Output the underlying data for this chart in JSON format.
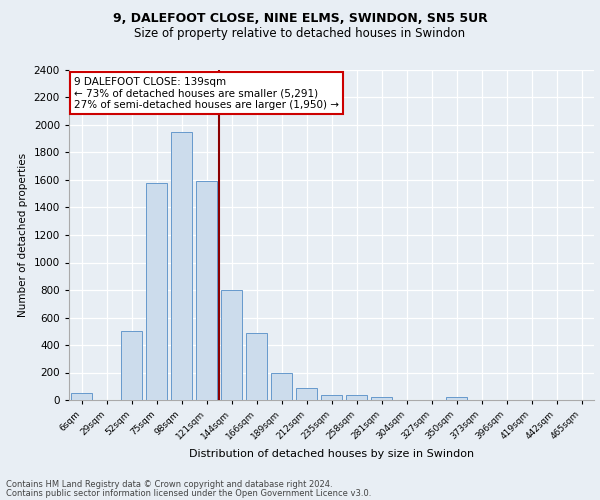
{
  "title_line1": "9, DALEFOOT CLOSE, NINE ELMS, SWINDON, SN5 5UR",
  "title_line2": "Size of property relative to detached houses in Swindon",
  "xlabel": "Distribution of detached houses by size in Swindon",
  "ylabel": "Number of detached properties",
  "categories": [
    "6sqm",
    "29sqm",
    "52sqm",
    "75sqm",
    "98sqm",
    "121sqm",
    "144sqm",
    "166sqm",
    "189sqm",
    "212sqm",
    "235sqm",
    "258sqm",
    "281sqm",
    "304sqm",
    "327sqm",
    "350sqm",
    "373sqm",
    "396sqm",
    "419sqm",
    "442sqm",
    "465sqm"
  ],
  "values": [
    50,
    0,
    500,
    1580,
    1950,
    1590,
    800,
    490,
    195,
    90,
    35,
    35,
    25,
    0,
    0,
    20,
    0,
    0,
    0,
    0,
    0
  ],
  "bar_color": "#ccdcec",
  "bar_edge_color": "#6699cc",
  "vline_x": 5.5,
  "vline_color": "#8b0000",
  "ylim": [
    0,
    2400
  ],
  "yticks": [
    0,
    200,
    400,
    600,
    800,
    1000,
    1200,
    1400,
    1600,
    1800,
    2000,
    2200,
    2400
  ],
  "annotation_text": "9 DALEFOOT CLOSE: 139sqm\n← 73% of detached houses are smaller (5,291)\n27% of semi-detached houses are larger (1,950) →",
  "annotation_box_color": "#ffffff",
  "annotation_box_edge": "#cc0000",
  "footnote1": "Contains HM Land Registry data © Crown copyright and database right 2024.",
  "footnote2": "Contains public sector information licensed under the Open Government Licence v3.0.",
  "bg_color": "#e8eef4",
  "plot_bg_color": "#e8eef4"
}
